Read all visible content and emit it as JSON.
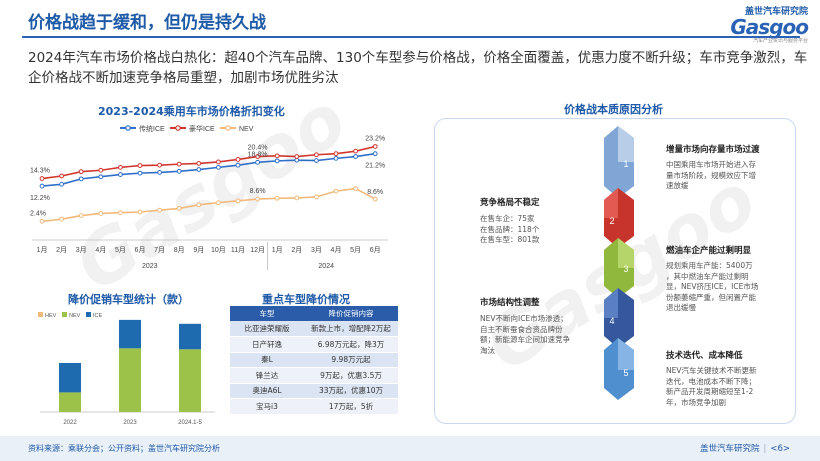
{
  "title": "价格战趋于缓和，但仍是持久战",
  "brand": {
    "cn": "盖世汽车研究院",
    "en": "Gasgoo",
    "sub": "汽车产业资讯与服务平台"
  },
  "summary": "2024年汽车市场价格战白热化：超40个汽车品牌、130个车型参与价格战，价格全面覆盖，优惠力度不断升级；车市竞争激烈，车企价格战不断加速竞争格局重塑，加剧市场优胜劣汰",
  "line_chart_title": "2023-2024乘用车市场价格折扣变化",
  "bar_chart_title": "降价促销车型统计（款）",
  "table_title": "重点车型降价情况",
  "panel_title": "价格战本质原因分析",
  "colors": {
    "ice": "#2f6fc9",
    "hybrid": "#d0362e",
    "nev": "#f2b97a",
    "bar_ice": "#1f6bb0",
    "bar_nev": "#9dc24a",
    "accent": "#1e5aa8"
  },
  "chart_data": [
    {
      "type": "line",
      "title": "2023-2024乘用车市场价格折扣变化",
      "x": [
        "1月",
        "2月",
        "3月",
        "4月",
        "5月",
        "6月",
        "7月",
        "8月",
        "9月",
        "10月",
        "11月",
        "12月",
        "1月",
        "2月",
        "3月",
        "4月",
        "5月",
        "6月"
      ],
      "x_groups": [
        {
          "label": "2023"
        },
        {
          "label": "2024"
        }
      ],
      "legend": "top",
      "ylim": [
        0,
        25
      ],
      "series": [
        {
          "name": "传统ICE",
          "color": "#2f6fc9",
          "values": [
            12.2,
            12.7,
            14.2,
            14.8,
            15.4,
            15.8,
            16.0,
            16.3,
            16.8,
            17.4,
            18.0,
            18.8,
            19.2,
            19.4,
            19.3,
            19.9,
            20.4,
            21.2
          ]
        },
        {
          "name": "豪华ICE",
          "color": "#d0362e",
          "values": [
            14.3,
            15.0,
            16.2,
            16.6,
            17.4,
            17.9,
            18.0,
            18.3,
            18.5,
            18.9,
            19.6,
            20.4,
            20.6,
            20.4,
            20.9,
            21.2,
            21.9,
            23.2
          ]
        },
        {
          "name": "NEV",
          "color": "#f2b97a",
          "values": [
            2.4,
            3.0,
            4.0,
            4.6,
            4.8,
            5.0,
            5.5,
            6.0,
            7.0,
            7.6,
            8.1,
            8.6,
            8.8,
            8.9,
            9.2,
            10.8,
            11.5,
            8.6
          ]
        }
      ],
      "labels": [
        {
          "text": "14.3%",
          "series": 1,
          "index": 0
        },
        {
          "text": "12.2%",
          "series": 0,
          "index": 0
        },
        {
          "text": "2.4%",
          "series": 2,
          "index": 0
        },
        {
          "text": "20.4%",
          "series": 1,
          "index": 11
        },
        {
          "text": "18.8%",
          "series": 0,
          "index": 11
        },
        {
          "text": "8.6%",
          "series": 2,
          "index": 11
        },
        {
          "text": "23.2%",
          "series": 1,
          "index": 17
        },
        {
          "text": "21.2%",
          "series": 0,
          "index": 17
        },
        {
          "text": "8.6%",
          "series": 2,
          "index": 17
        }
      ]
    },
    {
      "type": "bar",
      "stacked": true,
      "title": "降价促销车型统计（款）",
      "categories": [
        "2022",
        "2023",
        "2024.1-5"
      ],
      "legend": "top-left",
      "ylim": [
        0,
        100
      ],
      "series": [
        {
          "name": "HEV",
          "color": "#f2b97a",
          "values": [
            0,
            0,
            0
          ]
        },
        {
          "name": "NEV",
          "color": "#9dc24a",
          "values": [
            20,
            65,
            64
          ]
        },
        {
          "name": "ICE",
          "color": "#1f6bb0",
          "values": [
            30,
            29,
            26
          ]
        }
      ]
    },
    {
      "type": "table",
      "title": "重点车型降价情况",
      "headers": [
        "车型",
        "降价促销内容"
      ],
      "rows": [
        [
          "比亚迪荣耀版",
          "新款上市，增配降2万起"
        ],
        [
          "日产轩逸",
          "6.98万元起，降3万"
        ],
        [
          "秦L",
          "9.98万元起"
        ],
        [
          "锋兰达",
          "9万起，优惠3.5万"
        ],
        [
          "奥迪A6L",
          "33万起，优惠10万"
        ],
        [
          "宝马i3",
          "17万起，5折"
        ]
      ]
    }
  ],
  "causes": [
    {
      "num": "1",
      "color": "#9ab7d9",
      "title": "增量市场向存量市场过渡",
      "body": [
        "中国乘用车市场开始进入存",
        "量市场阶段，规模效应下增",
        "速放缓"
      ]
    },
    {
      "num": "2",
      "color": "#d0362e",
      "title": "竞争格局不稳定",
      "body": [
        "在售车企：75家",
        "在售品牌：118个",
        "在售车型：801款"
      ]
    },
    {
      "num": "3",
      "color": "#9dc24a",
      "title": "燃油车企产能过剩明显",
      "body": [
        "规划乘用车产能：5400万",
        "，其中燃油车产能过剩明",
        "显，NEV挤压ICE，ICE市场",
        "份额萎缩严重，但闲置产能",
        "退出缓慢"
      ]
    },
    {
      "num": "4",
      "color": "#3e63a8",
      "title": "市场结构性调整",
      "body": [
        "NEV不断向ICE市场渗透；",
        "自主不断蚕食合资品牌份",
        "额；新能源车企间加速竞争",
        "淘汰"
      ]
    },
    {
      "num": "5",
      "color": "#5b9bd5",
      "title": "技术迭代、成本降低",
      "body": [
        "NEV汽车关键技术不断更新",
        "迭代，电池成本不断下降；",
        "新产品开发周期缩短至1-2",
        "年，市场竞争加剧"
      ]
    }
  ],
  "footer": {
    "source": "资料来源：乘联分会；公开资料；盖世汽车研究院分析",
    "brand": "盖世汽车研究院",
    "page": "<6>"
  }
}
